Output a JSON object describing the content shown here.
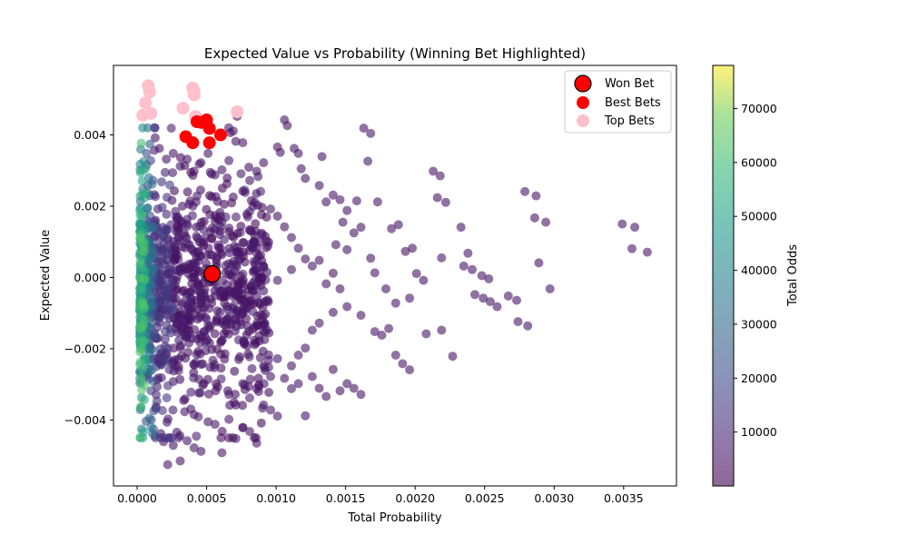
{
  "chart_data": {
    "type": "scatter",
    "title": "Expected Value vs Probability (Winning Bet Highlighted)",
    "xlabel": "Total Probability",
    "ylabel": "Expected Value",
    "xlim": [
      -0.00017,
      0.00388
    ],
    "ylim": [
      -0.00585,
      0.00595
    ],
    "xticks": [
      0.0,
      0.0005,
      0.001,
      0.0015,
      0.002,
      0.0025,
      0.003,
      0.0035
    ],
    "xtick_labels": [
      "0.0000",
      "0.0005",
      "0.0010",
      "0.0015",
      "0.0020",
      "0.0025",
      "0.0030",
      "0.0035"
    ],
    "yticks": [
      -0.004,
      -0.002,
      0.0,
      0.002,
      0.004
    ],
    "ytick_labels": [
      "−0.004",
      "−0.002",
      "0.000",
      "0.002",
      "0.004"
    ],
    "grid": false,
    "legend_position": "top-right",
    "colorbar": {
      "label": "Total Odds",
      "colormap": "viridis",
      "range": [
        0,
        78000
      ],
      "ticks": [
        10000,
        20000,
        30000,
        40000,
        50000,
        60000,
        70000
      ],
      "tick_labels": [
        "10000",
        "20000",
        "30000",
        "40000",
        "50000",
        "60000",
        "70000"
      ]
    },
    "series": [
      {
        "name": "Top Bets",
        "color": "#ffc0cb",
        "points": [
          [
            4e-05,
            0.00455
          ],
          [
            6e-05,
            0.0049
          ],
          [
            8e-05,
            0.00538
          ],
          [
            9e-05,
            0.0052
          ],
          [
            0.0001,
            0.0046
          ],
          [
            0.00033,
            0.00475
          ],
          [
            0.0004,
            0.00532
          ],
          [
            0.00041,
            0.00522
          ],
          [
            0.00041,
            0.00512
          ],
          [
            0.00042,
            0.00452
          ],
          [
            0.00072,
            0.00465
          ]
        ]
      },
      {
        "name": "Best Bets",
        "color": "#ff0000",
        "points": [
          [
            0.00035,
            0.00395
          ],
          [
            0.0004,
            0.00378
          ],
          [
            0.00043,
            0.00437
          ],
          [
            0.00046,
            0.00435
          ],
          [
            0.0005,
            0.00442
          ],
          [
            0.00052,
            0.00418
          ],
          [
            0.00052,
            0.00378
          ],
          [
            0.0006,
            0.004
          ]
        ]
      },
      {
        "name": "Won Bet",
        "color": "#ff0000",
        "edge": "#000000",
        "points": [
          [
            0.00054,
            0.0001
          ]
        ]
      }
    ],
    "scatter_points": [
      [
        0.00213,
        0.00298,
        5000
      ],
      [
        0.00218,
        0.00285,
        5000
      ],
      [
        0.00216,
        0.00224,
        5000
      ],
      [
        0.00222,
        0.00211,
        5000
      ],
      [
        0.00219,
        0.00055,
        5000
      ],
      [
        0.00233,
        0.00141,
        5000
      ],
      [
        0.00238,
        0.00068,
        5000
      ],
      [
        0.00235,
        0.00032,
        5000
      ],
      [
        0.00241,
        0.00022,
        5000
      ],
      [
        0.00248,
        5e-05,
        5000
      ],
      [
        0.00253,
        -4e-05,
        5000
      ],
      [
        0.00243,
        -0.00048,
        5000
      ],
      [
        0.00249,
        -0.00058,
        5000
      ],
      [
        0.00254,
        -0.00068,
        5000
      ],
      [
        0.00259,
        -0.00082,
        5000
      ],
      [
        0.00267,
        -0.00052,
        5000
      ],
      [
        0.00273,
        -0.00064,
        5000
      ],
      [
        0.00274,
        -0.00124,
        5000
      ],
      [
        0.00281,
        -0.00136,
        5000
      ],
      [
        0.00279,
        0.00241,
        5000
      ],
      [
        0.00287,
        0.00229,
        5000
      ],
      [
        0.00286,
        0.00167,
        5000
      ],
      [
        0.00294,
        0.00155,
        5000
      ],
      [
        0.00289,
        0.00041,
        5000
      ],
      [
        0.00297,
        -0.00032,
        5000
      ],
      [
        0.00349,
        0.0015,
        5000
      ],
      [
        0.00358,
        0.00141,
        5000
      ],
      [
        0.00356,
        0.00081,
        5000
      ],
      [
        0.00367,
        0.00071,
        5000
      ],
      [
        0.00227,
        -0.00221,
        5000
      ],
      [
        0.00219,
        -0.00148,
        5000
      ],
      [
        0.00208,
        -0.00158,
        5000
      ],
      [
        0.00196,
        -0.00259,
        5000
      ],
      [
        0.00191,
        -0.00242,
        5000
      ],
      [
        0.00186,
        -0.00218,
        5000
      ],
      [
        0.00181,
        -0.00143,
        5000
      ],
      [
        0.00176,
        -0.00162,
        5000
      ],
      [
        0.00171,
        -0.00152,
        5000
      ],
      [
        0.00166,
        0.00326,
        5000
      ],
      [
        0.00163,
        0.00419,
        5000
      ],
      [
        0.00168,
        0.00404,
        5000
      ],
      [
        0.00173,
        0.00212,
        5000
      ],
      [
        0.00183,
        0.00137,
        5000
      ],
      [
        0.00188,
        0.00148,
        5000
      ],
      [
        0.00193,
        0.00073,
        5000
      ],
      [
        0.00198,
        0.00082,
        5000
      ],
      [
        0.00201,
        0.00011,
        5000
      ],
      [
        0.00206,
        -8e-05,
        5000
      ],
      [
        0.00196,
        -0.00058,
        5000
      ],
      [
        0.00186,
        -0.00072,
        5000
      ],
      [
        0.00179,
        -0.00032,
        5000
      ],
      [
        0.00171,
        0.00013,
        5000
      ],
      [
        0.00168,
        0.00054,
        5000
      ],
      [
        0.00161,
        -0.00106,
        5000
      ],
      [
        0.00156,
        -0.00311,
        5000
      ],
      [
        0.00161,
        -0.00328,
        5000
      ],
      [
        0.00151,
        -0.00298,
        5000
      ],
      [
        0.00146,
        -0.00318,
        5000
      ],
      [
        0.00141,
        -0.00258,
        5000
      ],
      [
        0.00136,
        -0.00334,
        5000
      ],
      [
        0.00131,
        -0.00311,
        5000
      ],
      [
        0.00126,
        -0.00278,
        5000
      ],
      [
        0.00121,
        -0.00388,
        5000
      ],
      [
        0.00116,
        -0.00298,
        5000
      ],
      [
        0.00111,
        -0.00312,
        5000
      ],
      [
        0.00106,
        -0.00283,
        5000
      ],
      [
        0.00101,
        -0.00389,
        5000
      ],
      [
        0.00096,
        -0.00372,
        5000
      ],
      [
        0.00091,
        -0.00358,
        5000
      ],
      [
        0.00086,
        -0.00465,
        5000
      ],
      [
        0.00081,
        -0.00432,
        5000
      ],
      [
        0.00076,
        -0.00421,
        5000
      ],
      [
        0.00071,
        -0.00452,
        5000
      ],
      [
        0.00066,
        -0.00398,
        5000
      ],
      [
        0.00061,
        -0.00492,
        5000
      ],
      [
        0.00056,
        -0.00412,
        5000
      ],
      [
        0.00051,
        -0.00405,
        5000
      ],
      [
        0.00046,
        -0.00488,
        5000
      ],
      [
        0.00041,
        -0.00478,
        5000
      ],
      [
        0.00036,
        -0.00458,
        5000
      ],
      [
        0.00031,
        -0.00515,
        5000
      ],
      [
        0.00026,
        -0.00471,
        5000
      ],
      [
        0.00022,
        -0.00525,
        5000
      ],
      [
        0.00019,
        -0.00461,
        5000
      ],
      [
        0.00017,
        -0.00438,
        5000
      ],
      [
        0.00106,
        0.00442,
        5000
      ],
      [
        0.00108,
        0.00426,
        5000
      ],
      [
        0.00101,
        0.00366,
        5000
      ],
      [
        0.00103,
        0.00351,
        5000
      ],
      [
        0.00113,
        0.00362,
        5000
      ],
      [
        0.00116,
        0.00348,
        5000
      ],
      [
        0.00118,
        0.00305,
        5000
      ],
      [
        0.00121,
        0.00278,
        5000
      ],
      [
        0.00133,
        0.00339,
        5000
      ],
      [
        0.00131,
        0.00258,
        5000
      ],
      [
        0.00141,
        0.00231,
        5000
      ],
      [
        0.00136,
        0.00212,
        5000
      ],
      [
        0.00146,
        0.00218,
        5000
      ],
      [
        0.00151,
        0.00188,
        5000
      ],
      [
        0.00158,
        0.00215,
        5000
      ],
      [
        0.00148,
        0.00155,
        5000
      ],
      [
        0.00156,
        0.00125,
        5000
      ],
      [
        0.00161,
        0.00141,
        5000
      ],
      [
        0.00143,
        0.00092,
        5000
      ],
      [
        0.00151,
        0.00078,
        5000
      ],
      [
        0.00131,
        0.00048,
        5000
      ],
      [
        0.00126,
        0.00032,
        5000
      ],
      [
        0.00141,
        0.00012,
        5000
      ],
      [
        0.00136,
        -0.00018,
        5000
      ],
      [
        0.00146,
        -0.00032,
        5000
      ],
      [
        0.00151,
        -0.00082,
        5000
      ],
      [
        0.00141,
        -0.00098,
        5000
      ],
      [
        0.00131,
        -0.00128,
        5000
      ],
      [
        0.00126,
        -0.00148,
        5000
      ],
      [
        0.00121,
        -0.00198,
        5000
      ],
      [
        0.00116,
        -0.00218,
        5000
      ],
      [
        0.00111,
        -0.00248,
        5000
      ],
      [
        0.00101,
        -0.00228,
        5000
      ],
      [
        0.00096,
        -0.00278,
        5000
      ],
      [
        0.00091,
        -0.00248,
        5000
      ],
      [
        0.00086,
        -0.00312,
        5000
      ],
      [
        0.00081,
        -0.00338,
        5000
      ],
      [
        0.00076,
        -0.00298,
        5000
      ],
      [
        0.00071,
        -0.00358,
        5000
      ],
      [
        0.00066,
        -0.00328,
        5000
      ],
      [
        0.00091,
        0.00322,
        5000
      ],
      [
        0.00086,
        0.00298,
        5000
      ],
      [
        0.00081,
        0.00272,
        5000
      ],
      [
        0.00076,
        0.00242,
        5000
      ],
      [
        0.00072,
        0.00452,
        5000
      ],
      [
        0.00071,
        0.00382,
        5000
      ],
      [
        0.00076,
        0.00378,
        5000
      ],
      [
        0.00066,
        0.00328,
        5000
      ],
      [
        0.00061,
        0.00302,
        5000
      ],
      [
        0.00056,
        0.00288,
        5000
      ],
      [
        0.00096,
        0.00192,
        5000
      ],
      [
        0.00101,
        0.00172,
        5000
      ],
      [
        0.00106,
        0.00142,
        5000
      ],
      [
        0.00111,
        0.00112,
        5000
      ],
      [
        0.00116,
        0.00082,
        5000
      ],
      [
        0.00121,
        0.00052,
        5000
      ],
      [
        0.00111,
        0.00022,
        5000
      ],
      [
        0.00101,
        -8e-05,
        5000
      ],
      [
        0.00091,
        -0.00038,
        5000
      ],
      [
        0.00081,
        -0.00068,
        5000
      ],
      [
        0.00071,
        -0.00098,
        5000
      ],
      [
        0.00061,
        -0.00128,
        5000
      ],
      [
        0.00086,
        0.00068,
        5000
      ],
      [
        0.00076,
        0.00098,
        5000
      ],
      [
        0.00066,
        0.00128,
        5000
      ],
      [
        0.00056,
        0.00158,
        5000
      ],
      [
        0.00051,
        0.00348,
        5000
      ],
      [
        0.00046,
        0.00322,
        5000
      ],
      [
        0.00041,
        0.00298,
        5000
      ],
      [
        0.00036,
        0.00332,
        5000
      ],
      [
        0.00031,
        0.00312,
        5000
      ],
      [
        0.00026,
        0.00348,
        5000
      ],
      [
        0.00021,
        0.00332,
        5000
      ],
      [
        0.00016,
        0.00362,
        5000
      ],
      [
        0.00013,
        0.00392,
        5000
      ]
    ],
    "cluster": {
      "description_note": "",
      "x_range": [
        2e-05,
        0.00095
      ],
      "y_range": [
        -0.0045,
        0.0042
      ],
      "count": 1100
    }
  }
}
